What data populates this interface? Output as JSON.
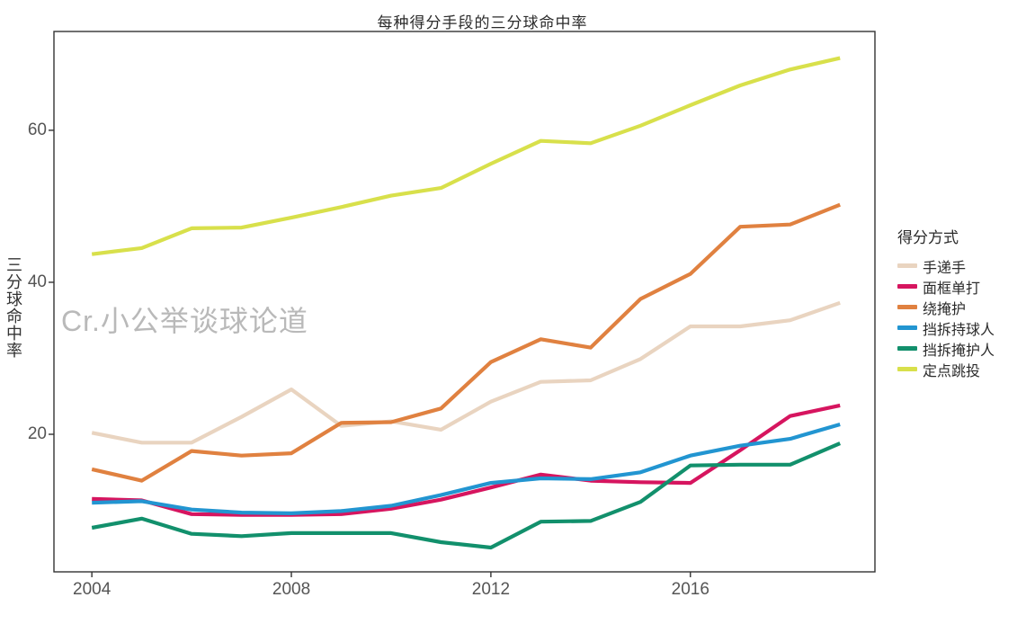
{
  "watermark": "Cr.小公举谈球论道",
  "chart_data": {
    "type": "line",
    "title": "每种得分手段的三分球命中率",
    "ylabel": "三分球命中率",
    "xlabel": "",
    "legend_title": "得分方式",
    "legend_position": "right",
    "grid": false,
    "background": "#ffffff",
    "panel_border_color": "#333333",
    "axis_text_color": "#555555",
    "xlim": [
      2003.24,
      2019.7
    ],
    "ylim": [
      1.9,
      73.0
    ],
    "x_ticks": [
      "2004",
      "2008",
      "2012",
      "2016"
    ],
    "x_tick_values": [
      2004,
      2008,
      2012,
      2016
    ],
    "y_ticks": [
      "20",
      "40",
      "60"
    ],
    "y_tick_values": [
      20,
      40,
      60
    ],
    "x": [
      2004,
      2005,
      2006,
      2007,
      2008,
      2009,
      2010,
      2011,
      2012,
      2013,
      2014,
      2015,
      2016,
      2017,
      2018,
      2019
    ],
    "series": [
      {
        "name": "手递手",
        "color": "#e9d4c0",
        "values": [
          20.2,
          18.9,
          18.9,
          22.3,
          25.9,
          21.1,
          21.7,
          20.6,
          24.3,
          26.9,
          27.1,
          29.9,
          34.2,
          34.2,
          35.0,
          37.3
        ]
      },
      {
        "name": "面框单打",
        "color": "#d6155f",
        "values": [
          11.5,
          11.3,
          9.5,
          9.4,
          9.4,
          9.5,
          10.2,
          11.4,
          13.0,
          14.7,
          13.9,
          13.7,
          13.6,
          17.9,
          22.4,
          23.8
        ]
      },
      {
        "name": "绕掩护",
        "color": "#e08140",
        "values": [
          15.4,
          13.9,
          17.8,
          17.2,
          17.5,
          21.5,
          21.6,
          23.4,
          29.5,
          32.5,
          31.4,
          37.8,
          41.1,
          47.3,
          47.6,
          50.2
        ]
      },
      {
        "name": "挡拆持球人",
        "color": "#2295d1",
        "values": [
          11.0,
          11.2,
          10.1,
          9.7,
          9.6,
          9.9,
          10.6,
          12.0,
          13.6,
          14.2,
          14.1,
          15.0,
          17.2,
          18.5,
          19.4,
          21.3
        ]
      },
      {
        "name": "挡拆掩护人",
        "color": "#12906c",
        "values": [
          7.7,
          8.9,
          6.9,
          6.6,
          7.0,
          7.0,
          7.0,
          5.8,
          5.1,
          8.5,
          8.6,
          11.1,
          15.9,
          16.0,
          16.0,
          18.8
        ]
      },
      {
        "name": "定点跳投",
        "color": "#d8e04b",
        "values": [
          43.7,
          44.5,
          47.1,
          47.2,
          48.5,
          49.9,
          51.4,
          52.4,
          55.6,
          58.6,
          58.3,
          60.6,
          63.3,
          65.9,
          68.0,
          69.5
        ]
      }
    ]
  }
}
